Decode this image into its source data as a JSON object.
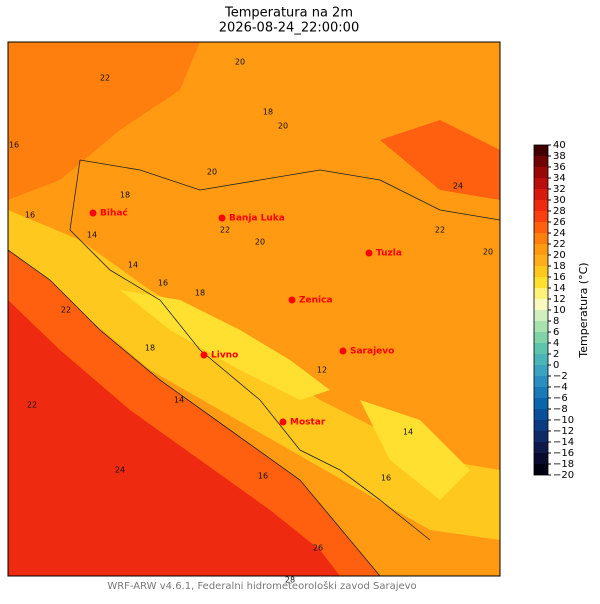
{
  "title": "Temperatura na 2m",
  "subtitle": "2026-08-24_22:00:00",
  "footer": "WRF-ARW v4.6.1, Federalni hidrometeorološki zavod Sarajevo",
  "cities": [
    "Bihać",
    "Banja Luka",
    "Tuzla",
    "Zenica",
    "Livno",
    "Sarajevo",
    "Mostar"
  ],
  "city_color": "#ff0000",
  "contour_labels": [
    22,
    20,
    18,
    20,
    16,
    14,
    16,
    18,
    20,
    22,
    20,
    14,
    16,
    18,
    24,
    22,
    20,
    14,
    12,
    16,
    18,
    22,
    14,
    16,
    26,
    28,
    24,
    22
  ],
  "colorbar": {
    "label": "Temperatura (°C)",
    "ticks": [
      {
        "value": -20,
        "label": "−20"
      },
      {
        "value": -18,
        "label": "−18"
      },
      {
        "value": -16,
        "label": "−16"
      },
      {
        "value": -14,
        "label": "−14"
      },
      {
        "value": -12,
        "label": "−12"
      },
      {
        "value": -10,
        "label": "−10"
      },
      {
        "value": -8,
        "label": "−8"
      },
      {
        "value": -6,
        "label": "−6"
      },
      {
        "value": -4,
        "label": "−4"
      },
      {
        "value": -2,
        "label": "−2"
      },
      0,
      2,
      4,
      6,
      8,
      10,
      12,
      14,
      16,
      18,
      20,
      22,
      24,
      26,
      28,
      30,
      32,
      34,
      36,
      38,
      40
    ],
    "colors": [
      "#000010",
      "#0a0a30",
      "#101a4a",
      "#102a66",
      "#0a3a80",
      "#0a4f99",
      "#0a65aa",
      "#1a7ab8",
      "#2a8fc0",
      "#3aa3c0",
      "#4ab5b8",
      "#5ec4ac",
      "#80d2a8",
      "#a8e0b0",
      "#d0eec0",
      "#fafac0",
      "#fff27a",
      "#ffe030",
      "#ffc81e",
      "#ffad1a",
      "#ff9a12",
      "#ff7f0e",
      "#ff6010",
      "#f84010",
      "#ee2a10",
      "#d81a0e",
      "#b80e0c",
      "#980808",
      "#700404",
      "#400000"
    ]
  }
}
